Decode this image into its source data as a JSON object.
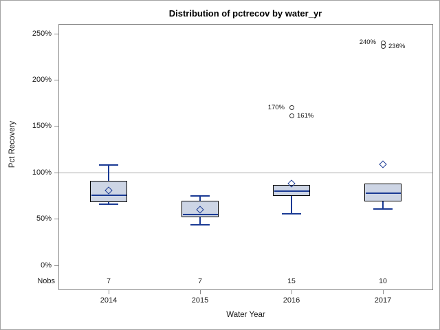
{
  "chart_data": {
    "type": "box",
    "title": "Distribution of pctrecov by water_yr",
    "xlabel": "Water Year",
    "ylabel": "Pct Recovery",
    "nobs_label": "Nobs",
    "yticks": [
      {
        "value": 0,
        "label": "0%"
      },
      {
        "value": 50,
        "label": "50%"
      },
      {
        "value": 100,
        "label": "100%"
      },
      {
        "value": 150,
        "label": "150%"
      },
      {
        "value": 200,
        "label": "200%"
      },
      {
        "value": 250,
        "label": "250%"
      }
    ],
    "ylim": [
      0,
      250
    ],
    "refline_value": 100,
    "grid": "off",
    "legend": "none",
    "categories": [
      "2014",
      "2015",
      "2016",
      "2017"
    ],
    "groups": [
      {
        "year": "2014",
        "nobs": 7,
        "whisker_low": 66,
        "q1": 68,
        "median": 76,
        "q3": 91,
        "whisker_high": 108,
        "mean": 81,
        "outliers": []
      },
      {
        "year": "2015",
        "nobs": 7,
        "whisker_low": 44,
        "q1": 52,
        "median": 55,
        "q3": 70,
        "whisker_high": 75,
        "mean": 60,
        "outliers": []
      },
      {
        "year": "2016",
        "nobs": 15,
        "whisker_low": 56,
        "q1": 75,
        "median": 80,
        "q3": 87,
        "whisker_high": 87,
        "mean": 88,
        "outliers": [
          {
            "value": 170,
            "label": "170%",
            "label_side": "left"
          },
          {
            "value": 161,
            "label": "161%",
            "label_side": "right"
          }
        ]
      },
      {
        "year": "2017",
        "nobs": 10,
        "whisker_low": 61,
        "q1": 69,
        "median": 78,
        "q3": 88,
        "whisker_high": 88,
        "mean": 109,
        "outliers": [
          {
            "value": 240,
            "label": "240%",
            "label_side": "left"
          },
          {
            "value": 236,
            "label": "236%",
            "label_side": "right"
          }
        ]
      }
    ],
    "colors": {
      "box_fill": "#cdd5e5",
      "box_border": "#000000",
      "line_blue": "#1a3a94",
      "outlier_stroke": "#333333",
      "axis_gray": "#8a8a8a",
      "refline_gray": "#a8a8a8",
      "text": "#1a1a1a"
    }
  }
}
